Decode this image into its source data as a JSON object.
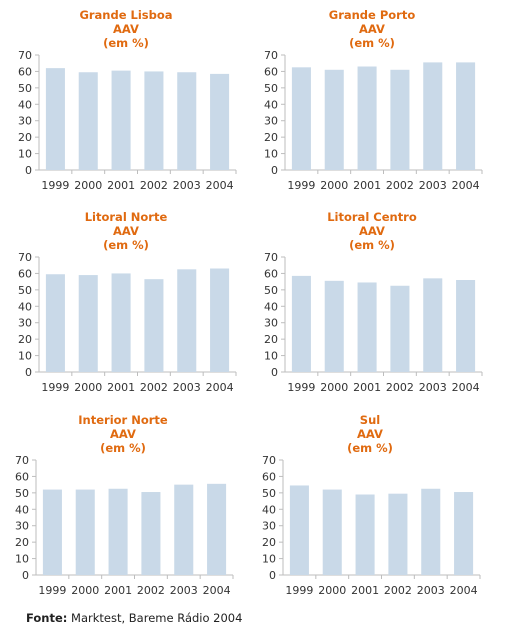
{
  "source": {
    "label": "Fonte:",
    "text": "Marktest, Bareme Rádio 2004"
  },
  "colors": {
    "title": "#e06a10",
    "bar": "#c9d9e8",
    "axis": "#bdbdbd"
  },
  "chart_data": [
    {
      "type": "bar",
      "title": [
        "Grande Lisboa",
        "AAV",
        "(em %)"
      ],
      "categories": [
        "1999",
        "2000",
        "2001",
        "2002",
        "2003",
        "2004"
      ],
      "values": [
        62,
        59.5,
        60.5,
        60,
        59.5,
        58.5
      ],
      "yticks": [
        0,
        10,
        20,
        30,
        40,
        50,
        60,
        70
      ],
      "ylim": [
        0,
        70
      ]
    },
    {
      "type": "bar",
      "title": [
        "Grande Porto",
        "AAV",
        "(em %)"
      ],
      "categories": [
        "1999",
        "2000",
        "2001",
        "2002",
        "2003",
        "2004"
      ],
      "values": [
        62.5,
        61,
        63,
        61,
        65.5,
        65.5
      ],
      "yticks": [
        0,
        10,
        20,
        30,
        40,
        50,
        60,
        70
      ],
      "ylim": [
        0,
        70
      ]
    },
    {
      "type": "bar",
      "title": [
        "Litoral Norte",
        "AAV",
        "(em %)"
      ],
      "categories": [
        "1999",
        "2000",
        "2001",
        "2002",
        "2003",
        "2004"
      ],
      "values": [
        59.5,
        59,
        60,
        56.5,
        62.5,
        63
      ],
      "yticks": [
        0,
        10,
        20,
        30,
        40,
        50,
        60,
        70
      ],
      "ylim": [
        0,
        70
      ]
    },
    {
      "type": "bar",
      "title": [
        "Litoral Centro",
        "AAV",
        "(em %)"
      ],
      "categories": [
        "1999",
        "2000",
        "2001",
        "2002",
        "2003",
        "2004"
      ],
      "values": [
        58.5,
        55.5,
        54.5,
        52.5,
        57,
        56
      ],
      "yticks": [
        0,
        10,
        20,
        30,
        40,
        50,
        60,
        70
      ],
      "ylim": [
        0,
        70
      ]
    },
    {
      "type": "bar",
      "title": [
        "Interior Norte",
        "AAV",
        "(em %)"
      ],
      "categories": [
        "1999",
        "2000",
        "2001",
        "2002",
        "2003",
        "2004"
      ],
      "values": [
        52,
        52,
        52.5,
        50.5,
        55,
        55.5
      ],
      "yticks": [
        0,
        10,
        20,
        30,
        40,
        50,
        60,
        70
      ],
      "ylim": [
        0,
        70
      ]
    },
    {
      "type": "bar",
      "title": [
        "Sul",
        "AAV",
        "(em %)"
      ],
      "categories": [
        "1999",
        "2000",
        "2001",
        "2002",
        "2003",
        "2004"
      ],
      "values": [
        54.5,
        52,
        49,
        49.5,
        52.5,
        50.5
      ],
      "yticks": [
        0,
        10,
        20,
        30,
        40,
        50,
        60,
        70
      ],
      "ylim": [
        0,
        70
      ]
    }
  ]
}
